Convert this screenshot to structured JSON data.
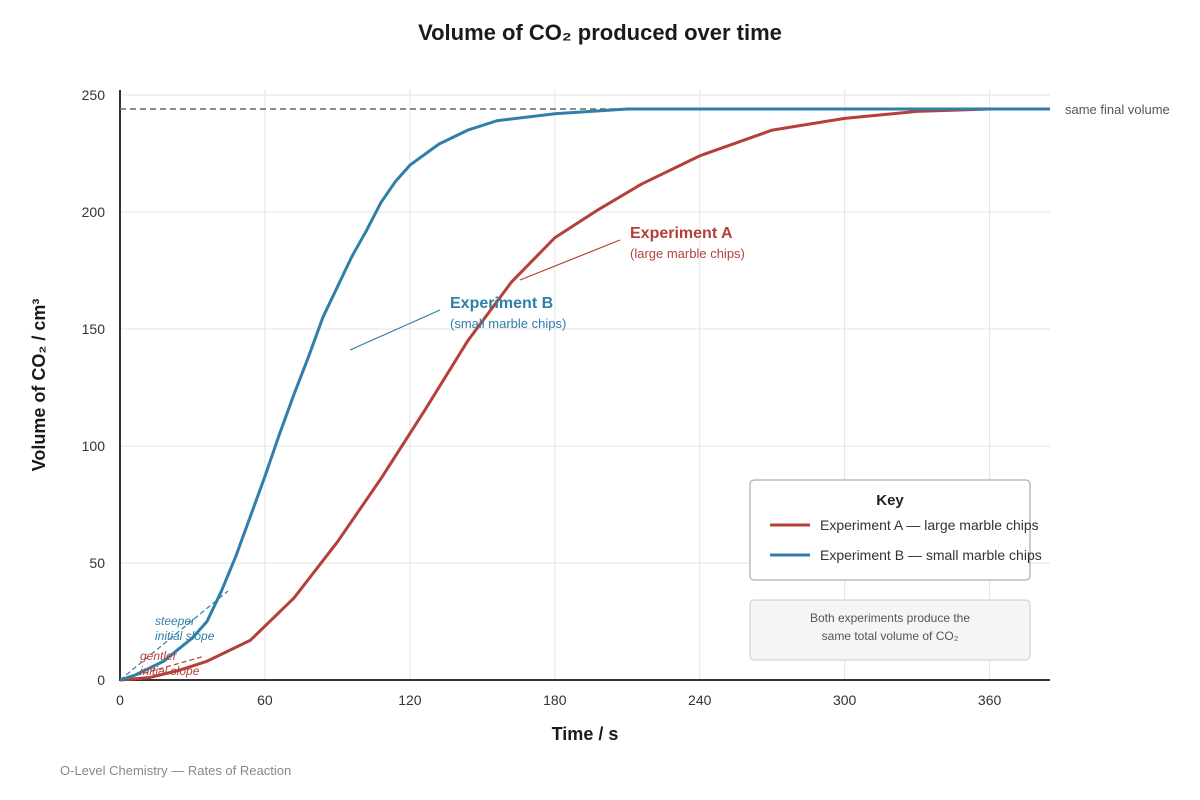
{
  "colors": {
    "experiment_a": "#b5403a",
    "experiment_b": "#2f7fa8",
    "reference": "#666666"
  },
  "chart_data": {
    "type": "line",
    "title": "Volume of CO₂ produced over time",
    "xlabel": "Time / s",
    "ylabel": "Volume of CO₂ / cm³",
    "xlim": [
      0,
      385
    ],
    "ylim": [
      0,
      250
    ],
    "x_ticks": [
      0,
      60,
      120,
      180,
      240,
      300,
      360
    ],
    "y_ticks": [
      0,
      50,
      100,
      150,
      200,
      250
    ],
    "grid": true,
    "series": [
      {
        "name": "Experiment A — large marble chips",
        "label": "Experiment A",
        "sublabel": "(large marble chips)",
        "points": [
          [
            0,
            0
          ],
          [
            12,
            1
          ],
          [
            24,
            4
          ],
          [
            36,
            8
          ],
          [
            54,
            17
          ],
          [
            72,
            35
          ],
          [
            90,
            59
          ],
          [
            108,
            86
          ],
          [
            126,
            115
          ],
          [
            144,
            145
          ],
          [
            162,
            170
          ],
          [
            180,
            189
          ],
          [
            198,
            201
          ],
          [
            216,
            212
          ],
          [
            240,
            224
          ],
          [
            270,
            235
          ],
          [
            300,
            240
          ],
          [
            330,
            243
          ],
          [
            360,
            244
          ],
          [
            385,
            244
          ]
        ]
      },
      {
        "name": "Experiment B — small marble chips",
        "label": "Experiment B",
        "sublabel": "(small marble chips)",
        "points": [
          [
            0,
            0
          ],
          [
            6,
            2
          ],
          [
            12,
            5
          ],
          [
            18,
            8
          ],
          [
            24,
            13
          ],
          [
            30,
            18
          ],
          [
            36,
            25
          ],
          [
            42,
            38
          ],
          [
            48,
            53
          ],
          [
            54,
            70
          ],
          [
            60,
            87
          ],
          [
            66,
            105
          ],
          [
            72,
            122
          ],
          [
            78,
            138
          ],
          [
            84,
            155
          ],
          [
            90,
            168
          ],
          [
            96,
            181
          ],
          [
            102,
            192
          ],
          [
            108,
            204
          ],
          [
            114,
            213
          ],
          [
            120,
            220
          ],
          [
            132,
            229
          ],
          [
            144,
            235
          ],
          [
            156,
            239
          ],
          [
            180,
            242
          ],
          [
            210,
            244
          ],
          [
            240,
            244
          ],
          [
            300,
            244
          ],
          [
            360,
            244
          ],
          [
            385,
            244
          ]
        ]
      }
    ],
    "reference_line": {
      "y": 244,
      "label": "same final volume"
    },
    "annotations": {
      "steeper": [
        "steeper",
        "initial slope"
      ],
      "gentler": [
        "gentler",
        "initial slope"
      ]
    },
    "legend": {
      "title": "Key",
      "placement": "bottom-right",
      "entries": [
        "Experiment A — large marble chips",
        "Experiment B — small marble chips"
      ]
    },
    "note": [
      "Both experiments produce the",
      "same total volume of CO₂"
    ]
  },
  "footer": "O-Level Chemistry — Rates of Reaction"
}
